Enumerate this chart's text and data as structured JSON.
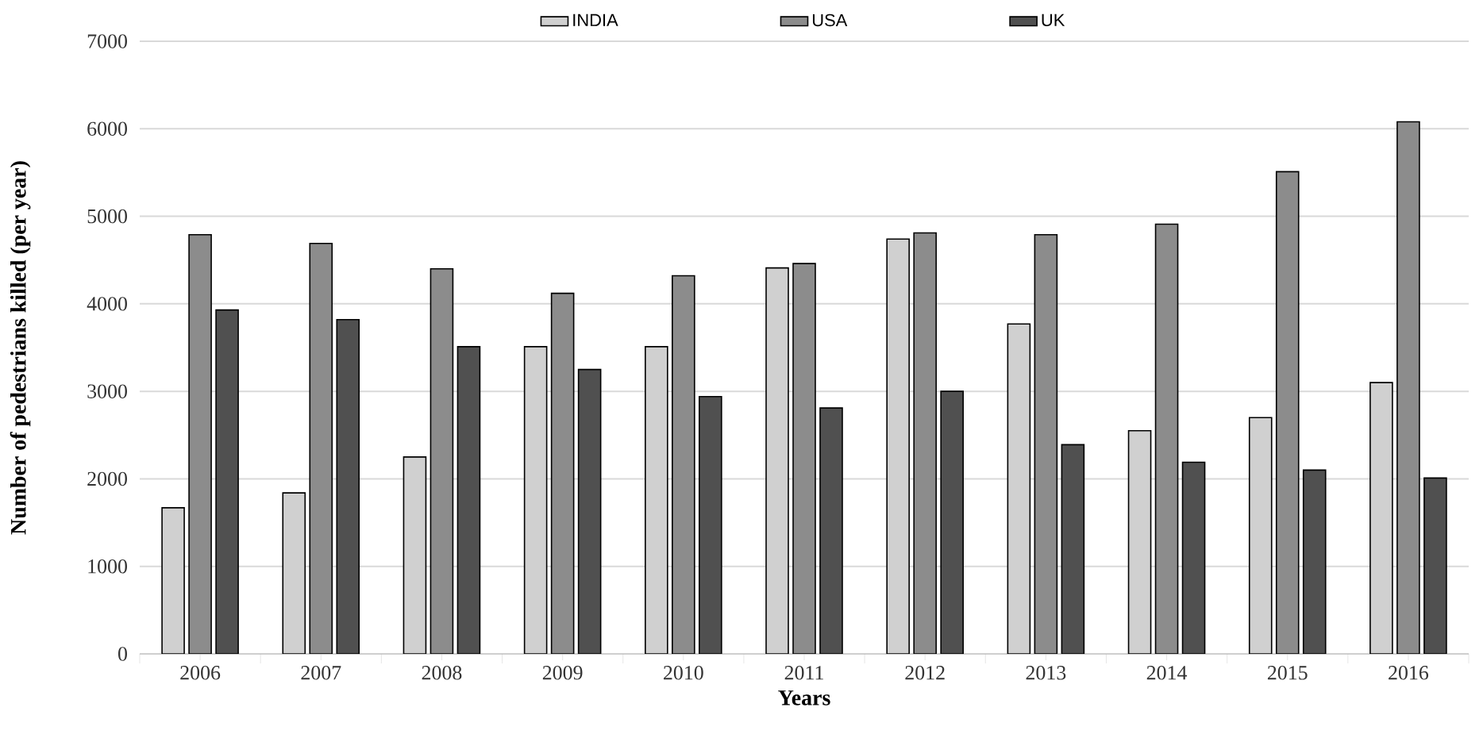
{
  "chart_data": {
    "type": "bar",
    "xlabel": "Years",
    "ylabel": "Number of pedestrians killed (per year)",
    "categories": [
      "2006",
      "2007",
      "2008",
      "2009",
      "2010",
      "2011",
      "2012",
      "2013",
      "2014",
      "2015",
      "2016"
    ],
    "series": [
      {
        "name": "INDIA",
        "color": "#d0d0d0",
        "values": [
          1670,
          1840,
          2250,
          3510,
          3510,
          4410,
          4740,
          3770,
          2550,
          2700,
          3100
        ]
      },
      {
        "name": "USA",
        "color": "#8c8c8c",
        "values": [
          4790,
          4690,
          4400,
          4120,
          4320,
          4460,
          4810,
          4790,
          4910,
          5510,
          6080
        ]
      },
      {
        "name": "UK",
        "color": "#505050",
        "values": [
          3930,
          3820,
          3510,
          3250,
          2940,
          2810,
          3000,
          2390,
          2190,
          2100,
          2010
        ]
      }
    ],
    "ylim": [
      0,
      7000
    ],
    "yticks": [
      0,
      1000,
      2000,
      3000,
      4000,
      5000,
      6000,
      7000
    ],
    "grid": "y",
    "legend": "top"
  }
}
